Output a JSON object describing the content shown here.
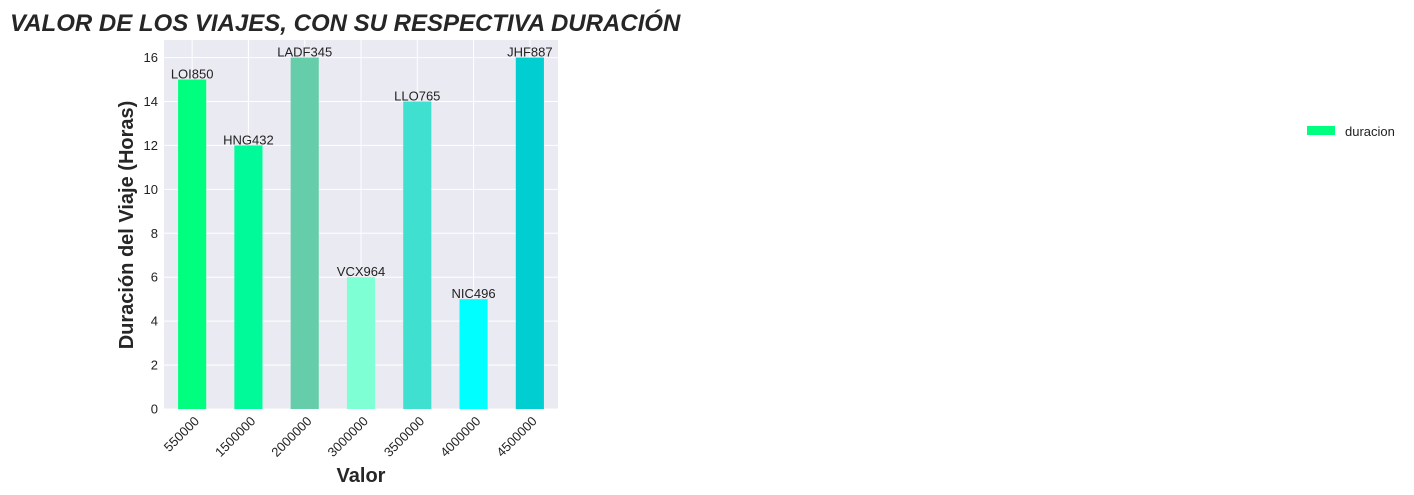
{
  "chart_data": {
    "type": "bar",
    "title": "VALOR DE LOS VIAJES, CON SU RESPECTIVA DURACIÓN",
    "xlabel": "Valor",
    "ylabel": "Duración del Viaje (Horas)",
    "categories": [
      "550000",
      "1500000",
      "2000000",
      "3000000",
      "3500000",
      "4000000",
      "4500000"
    ],
    "series": [
      {
        "name": "duracion",
        "values": [
          15,
          12,
          16,
          6,
          14,
          5,
          16
        ]
      }
    ],
    "bar_labels": [
      "LOI850",
      "HNG432",
      "LADF345",
      "VCX964",
      "LLO765",
      "NIC496",
      "JHF887"
    ],
    "bar_colors": [
      "#00ff7f",
      "#00fa9a",
      "#66cdaa",
      "#7fffd4",
      "#40e0d0",
      "#00ffff",
      "#00ced1"
    ],
    "yticks": [
      0,
      2,
      4,
      6,
      8,
      10,
      12,
      14,
      16
    ],
    "ylim": [
      0,
      16.8
    ],
    "grid": true,
    "legend_position": "right",
    "legend_color": "#00ff7f",
    "plot_background": "#eaeaf2",
    "grid_color": "#ffffff"
  }
}
